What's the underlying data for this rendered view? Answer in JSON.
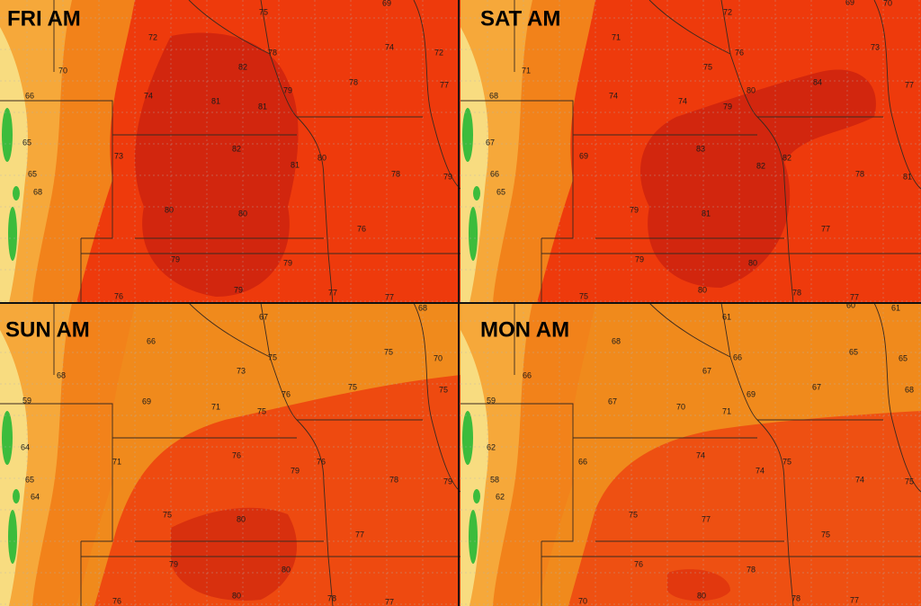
{
  "panels": [
    {
      "title": "FRI AM",
      "labels": [
        69,
        75,
        72,
        74,
        72,
        70,
        82,
        78,
        78,
        77,
        66,
        74,
        81,
        81,
        79,
        65,
        82,
        80,
        81,
        73,
        78,
        79,
        65,
        68,
        80,
        80,
        76,
        79,
        79,
        76,
        79,
        77,
        77
      ]
    },
    {
      "title": "SAT AM",
      "labels": [
        69,
        70,
        72,
        71,
        76,
        73,
        75,
        71,
        68,
        74,
        74,
        79,
        80,
        84,
        77,
        67,
        83,
        69,
        82,
        82,
        78,
        81,
        66,
        65,
        79,
        81,
        77,
        79,
        80,
        75,
        80,
        78,
        77
      ]
    },
    {
      "title": "SUN AM",
      "labels": [
        68,
        67,
        66,
        75,
        75,
        70,
        68,
        73,
        76,
        75,
        75,
        59,
        69,
        71,
        75,
        64,
        76,
        76,
        79,
        71,
        78,
        79,
        65,
        64,
        75,
        80,
        77,
        79,
        80,
        76,
        80,
        78,
        77
      ]
    },
    {
      "title": "MON AM",
      "labels": [
        60,
        61,
        61,
        68,
        66,
        65,
        65,
        66,
        67,
        69,
        67,
        68,
        59,
        67,
        70,
        71,
        62,
        74,
        75,
        74,
        66,
        74,
        75,
        58,
        62,
        75,
        77,
        75,
        76,
        78,
        70,
        80,
        78,
        77
      ]
    }
  ]
}
